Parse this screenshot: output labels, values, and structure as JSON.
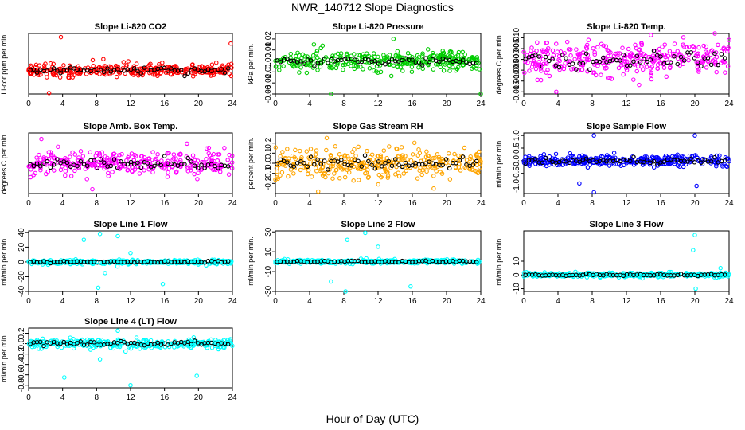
{
  "figure": {
    "title": "NWR_140712  Slope Diagnostics",
    "xlabel": "Hour of Day (UTC)"
  },
  "chart_data": [
    {
      "type": "scatter",
      "title": "Slope Li-820 CO2",
      "ylabel": "Li-cor ppm per min.",
      "xlim": [
        0,
        24
      ],
      "xticks": [
        "0",
        "4",
        "8",
        "12",
        "16",
        "20",
        "24"
      ],
      "ylim": [
        -2.6,
        4.0
      ],
      "yticks": [],
      "color": "#ff0000",
      "amplitude": 0.6,
      "outliers": [
        [
          3.8,
          3.6
        ],
        [
          23.8,
          2.9
        ],
        [
          2.4,
          -2.5
        ],
        [
          8.8,
          1.2
        ]
      ],
      "series": [
        {
          "name": "",
          "values": []
        }
      ]
    },
    {
      "type": "scatter",
      "title": "Slope Li-820 Pressure",
      "ylabel": "kPa per min.",
      "xlim": [
        0,
        24
      ],
      "xticks": [
        "0",
        "4",
        "8",
        "12",
        "16",
        "20",
        "24"
      ],
      "ylim": [
        -0.03,
        0.025
      ],
      "yticks": [
        "-0.03",
        "-0.02",
        "-0.01",
        "0.00",
        "0.01",
        "0.02"
      ],
      "color": "#00cc00",
      "amplitude": 0.008,
      "outliers": [
        [
          6.5,
          -0.03
        ],
        [
          24,
          -0.03
        ],
        [
          13.8,
          0.02
        ],
        [
          4.5,
          0.015
        ]
      ],
      "series": [
        {
          "name": "",
          "values": []
        }
      ]
    },
    {
      "type": "scatter",
      "title": "Slope Li-820 Temp.",
      "ylabel": "degrees C per min.",
      "xlim": [
        0,
        24
      ],
      "xticks": [
        "0",
        "4",
        "8",
        "12",
        "16",
        "20",
        "24"
      ],
      "ylim": [
        -0.016,
        0.012
      ],
      "yticks": [
        "-0.015",
        "-0.010",
        "-0.005",
        "0.000",
        "0.005",
        "0.010"
      ],
      "color": "#ff00ff",
      "amplitude": 0.007,
      "outliers": [
        [
          3.8,
          -0.015
        ],
        [
          24,
          0.009
        ]
      ],
      "series": [
        {
          "name": "",
          "values": []
        }
      ]
    },
    {
      "type": "scatter",
      "title": "Slope Amb. Box Temp.",
      "ylabel": "degrees C per min.",
      "xlim": [
        0,
        24
      ],
      "xticks": [
        "0",
        "4",
        "8",
        "12",
        "16",
        "20",
        "24"
      ],
      "ylim": [
        -0.35,
        0.35
      ],
      "yticks": [],
      "color": "#ff00ff",
      "amplitude": 0.12,
      "outliers": [
        [
          7.5,
          -0.3
        ],
        [
          1.5,
          0.28
        ]
      ],
      "series": [
        {
          "name": "",
          "values": []
        }
      ]
    },
    {
      "type": "scatter",
      "title": "Slope Gas Stream RH",
      "ylabel": "percent per min.",
      "xlim": [
        0,
        24
      ],
      "xticks": [
        "0",
        "4",
        "8",
        "12",
        "16",
        "20",
        "24"
      ],
      "ylim": [
        -0.3,
        0.3
      ],
      "yticks": [
        "-0.2",
        "-0.1",
        "0.0",
        "0.1",
        "0.2"
      ],
      "color": "#ffa500",
      "amplitude": 0.13,
      "outliers": [
        [
          5,
          -0.28
        ],
        [
          18.5,
          -0.25
        ],
        [
          6,
          0.25
        ]
      ],
      "series": [
        {
          "name": "",
          "values": []
        }
      ]
    },
    {
      "type": "scatter",
      "title": "Slope Sample Flow",
      "ylabel": "ml/min per min.",
      "xlim": [
        0,
        24
      ],
      "xticks": [
        "0",
        "4",
        "8",
        "12",
        "16",
        "20",
        "24"
      ],
      "ylim": [
        -1.3,
        1.1
      ],
      "yticks": [
        "-1.0",
        "-0.5",
        "0.0",
        "0.5",
        "1.0"
      ],
      "color": "#0000ff",
      "amplitude": 0.2,
      "outliers": [
        [
          8.2,
          -1.25
        ],
        [
          8.2,
          1.0
        ],
        [
          20,
          1.0
        ],
        [
          6.5,
          -0.9
        ],
        [
          20.2,
          -1.0
        ]
      ],
      "series": [
        {
          "name": "",
          "values": []
        }
      ]
    },
    {
      "type": "scatter",
      "title": "Slope Line 1 Flow",
      "ylabel": "ml/min per min.",
      "xlim": [
        0,
        24
      ],
      "xticks": [
        "0",
        "4",
        "8",
        "12",
        "16",
        "20",
        "24"
      ],
      "ylim": [
        -40,
        42
      ],
      "yticks": [
        "-40",
        "-20",
        "0",
        "20",
        "40"
      ],
      "color": "#00ffff",
      "amplitude": 2.5,
      "outliers": [
        [
          8.2,
          -35
        ],
        [
          8.4,
          38
        ],
        [
          6.5,
          30
        ],
        [
          10.5,
          35
        ],
        [
          9,
          -15
        ],
        [
          12,
          12
        ],
        [
          15.8,
          -30
        ]
      ],
      "series": [
        {
          "name": "",
          "values": []
        }
      ]
    },
    {
      "type": "scatter",
      "title": "Slope Line 2 Flow",
      "ylabel": "ml/min per min.",
      "xlim": [
        0,
        24
      ],
      "xticks": [
        "0",
        "4",
        "8",
        "12",
        "16",
        "20",
        "24"
      ],
      "ylim": [
        -30,
        31
      ],
      "yticks": [
        "-30",
        "-10",
        "10",
        "30"
      ],
      "color": "#00ffff",
      "amplitude": 1.8,
      "outliers": [
        [
          8.2,
          -30
        ],
        [
          8.4,
          22
        ],
        [
          10.5,
          29
        ],
        [
          6.5,
          -20
        ],
        [
          12,
          15
        ],
        [
          15.8,
          -25
        ]
      ],
      "series": [
        {
          "name": "",
          "values": []
        }
      ]
    },
    {
      "type": "scatter",
      "title": "Slope Line 3 Flow",
      "ylabel": "ml/min per min.",
      "xlim": [
        0,
        24
      ],
      "xticks": [
        "0",
        "4",
        "8",
        "12",
        "16",
        "20",
        "24"
      ],
      "ylim": [
        -12,
        32
      ],
      "yticks": [
        "-10",
        "0",
        "10"
      ],
      "color": "#00ffff",
      "amplitude": 1.5,
      "outliers": [
        [
          20,
          29
        ],
        [
          19.8,
          18
        ],
        [
          20.1,
          -10
        ],
        [
          23,
          5
        ]
      ],
      "series": [
        {
          "name": "",
          "values": []
        }
      ]
    },
    {
      "type": "scatter",
      "title": "Slope Line 4 (LT) Flow",
      "ylabel": "ml/min per min.",
      "xlim": [
        0,
        24
      ],
      "xticks": [
        "0",
        "4",
        "8",
        "12",
        "16",
        "20",
        "24"
      ],
      "ylim": [
        -0.85,
        0.3
      ],
      "yticks": [
        "-0.8",
        "-0.6",
        "-0.4",
        "-0.2",
        "0.0",
        "0.2"
      ],
      "color": "#00ffff",
      "amplitude": 0.08,
      "outliers": [
        [
          4.2,
          -0.65
        ],
        [
          12,
          -0.8
        ],
        [
          19.8,
          -0.62
        ],
        [
          8.4,
          -0.3
        ],
        [
          10.5,
          0.25
        ]
      ],
      "series": [
        {
          "name": "",
          "values": []
        }
      ]
    }
  ]
}
